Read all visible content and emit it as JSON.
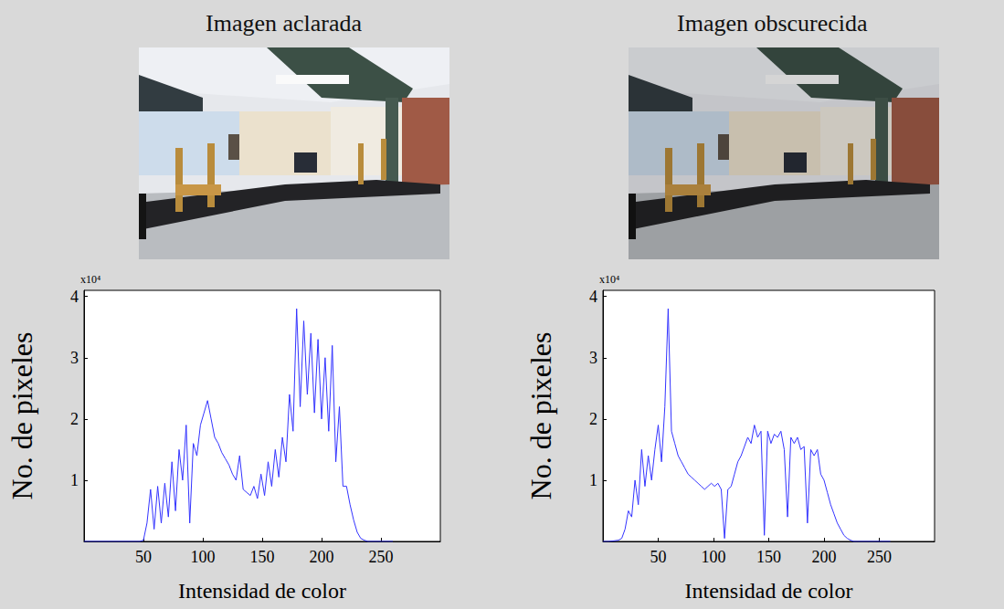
{
  "chart_data": [
    {
      "type": "line",
      "title": "Imagen aclarada",
      "xlabel": "Intensidad de color",
      "ylabel": "No. de pixeles",
      "annotations": [
        "x10⁴"
      ],
      "color": "#3333ff",
      "grid": false,
      "xlim": [
        0,
        300
      ],
      "ylim": [
        0,
        4.1
      ],
      "xticks": [
        50,
        100,
        150,
        200,
        250
      ],
      "yticks": [
        1,
        2,
        3,
        4
      ],
      "x": [
        0,
        10,
        20,
        30,
        40,
        44,
        47,
        50,
        53,
        56,
        59,
        62,
        65,
        68,
        71,
        74,
        77,
        80,
        83,
        86,
        89,
        92,
        95,
        98,
        101,
        104,
        107,
        110,
        113,
        116,
        119,
        122,
        125,
        128,
        131,
        134,
        137,
        140,
        143,
        146,
        149,
        152,
        155,
        158,
        161,
        164,
        167,
        170,
        173,
        176,
        179,
        182,
        185,
        188,
        191,
        194,
        197,
        200,
        203,
        206,
        209,
        212,
        215,
        218,
        221,
        224,
        227,
        230,
        233,
        236,
        239,
        250,
        260
      ],
      "values": [
        0,
        0,
        0,
        0,
        0,
        0,
        0,
        0.02,
        0.3,
        0.85,
        0.2,
        0.9,
        0.3,
        0.95,
        0.4,
        1.3,
        0.5,
        1.5,
        1.0,
        1.9,
        0.3,
        1.6,
        1.4,
        1.9,
        2.1,
        2.3,
        2.0,
        1.7,
        1.6,
        1.45,
        1.35,
        1.25,
        1.1,
        1.0,
        1.4,
        0.85,
        0.8,
        0.75,
        0.9,
        0.7,
        1.1,
        0.75,
        1.3,
        0.9,
        1.5,
        1.05,
        1.7,
        1.3,
        2.4,
        1.8,
        3.8,
        2.2,
        3.6,
        2.4,
        3.4,
        2.1,
        3.3,
        2.0,
        3.0,
        1.8,
        3.2,
        1.3,
        2.2,
        0.9,
        0.9,
        0.6,
        0.35,
        0.15,
        0.05,
        0.02,
        0,
        0,
        0
      ]
    },
    {
      "type": "line",
      "title": "Imagen obscurecida",
      "xlabel": "Intensidad de color",
      "ylabel": "No. de pixeles",
      "annotations": [
        "x10⁴"
      ],
      "color": "#3333ff",
      "grid": false,
      "xlim": [
        0,
        300
      ],
      "ylim": [
        0,
        4.1
      ],
      "xticks": [
        50,
        100,
        150,
        200,
        250
      ],
      "yticks": [
        1,
        2,
        3,
        4
      ],
      "x": [
        0,
        5,
        10,
        14,
        17,
        20,
        23,
        26,
        29,
        32,
        35,
        38,
        41,
        44,
        47,
        50,
        53,
        56,
        59,
        62,
        65,
        68,
        71,
        74,
        77,
        80,
        83,
        86,
        89,
        92,
        95,
        98,
        101,
        104,
        107,
        110,
        113,
        116,
        119,
        122,
        125,
        128,
        131,
        134,
        137,
        140,
        143,
        146,
        149,
        152,
        155,
        158,
        161,
        164,
        167,
        170,
        173,
        176,
        179,
        182,
        185,
        188,
        191,
        194,
        197,
        200,
        203,
        206,
        209,
        212,
        215,
        218,
        221,
        224,
        227,
        230,
        233,
        245,
        260
      ],
      "values": [
        0,
        0,
        0.01,
        0.02,
        0.05,
        0.2,
        0.5,
        0.4,
        1.0,
        0.6,
        1.5,
        0.9,
        1.4,
        1.0,
        1.5,
        1.9,
        1.3,
        2.2,
        3.8,
        1.8,
        1.6,
        1.4,
        1.3,
        1.2,
        1.1,
        1.05,
        1.0,
        0.95,
        0.9,
        0.85,
        0.9,
        0.95,
        0.9,
        0.95,
        0.85,
        0.05,
        0.85,
        0.9,
        1.1,
        1.3,
        1.4,
        1.55,
        1.7,
        1.6,
        1.9,
        1.7,
        1.8,
        0.1,
        1.8,
        1.6,
        1.75,
        1.7,
        1.8,
        1.5,
        0.4,
        1.7,
        1.6,
        1.7,
        1.5,
        1.55,
        0.3,
        1.5,
        1.4,
        1.5,
        1.1,
        1.0,
        0.8,
        0.6,
        0.45,
        0.3,
        0.2,
        0.1,
        0.05,
        0.02,
        0,
        0,
        0,
        0,
        0
      ]
    }
  ]
}
